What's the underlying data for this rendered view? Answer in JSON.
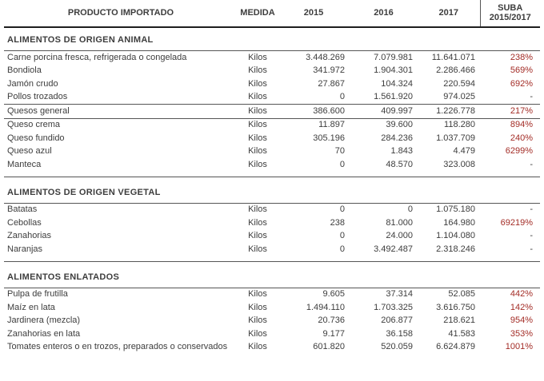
{
  "colors": {
    "highlight": "#a32c26",
    "text": "#3d3d3d",
    "rule_heavy": "#1e1e1e",
    "rule_light": "#555555"
  },
  "header": {
    "product": "PRODUCTO IMPORTADO",
    "medida": "MEDIDA",
    "y2015": "2015",
    "y2016": "2016",
    "y2017": "2017",
    "suba_line1": "SUBA",
    "suba_line2": "2015/2017"
  },
  "sections": [
    {
      "title": "ALIMENTOS DE ORIGEN ANIMAL",
      "groups": [
        {
          "rows": [
            {
              "product": "Carne porcina fresca, refrigerada o congelada",
              "unit": "Kilos",
              "y2015": "3.448.269",
              "y2016": "7.079.981",
              "y2017": "11.641.071",
              "suba": "238%",
              "highlight": true
            },
            {
              "product": "Bondiola",
              "unit": "Kilos",
              "y2015": "341.972",
              "y2016": "1.904.301",
              "y2017": "2.286.466",
              "suba": "569%",
              "highlight": true
            },
            {
              "product": "Jamón crudo",
              "unit": "Kilos",
              "y2015": "27.867",
              "y2016": "104.324",
              "y2017": "220.594",
              "suba": "692%",
              "highlight": true
            },
            {
              "product": "Pollos trozados",
              "unit": "Kilos",
              "y2015": "0",
              "y2016": "1.561.920",
              "y2017": "974.025",
              "suba": "-",
              "highlight": false
            }
          ]
        },
        {
          "rows": [
            {
              "product": "Quesos general",
              "unit": "Kilos",
              "y2015": "386.600",
              "y2016": "409.997",
              "y2017": "1.226.778",
              "suba": "217%",
              "highlight": true
            }
          ]
        },
        {
          "rows": [
            {
              "product": "Queso crema",
              "unit": "Kilos",
              "y2015": "11.897",
              "y2016": "39.600",
              "y2017": "118.280",
              "suba": "894%",
              "highlight": true
            },
            {
              "product": "Queso fundido",
              "unit": "Kilos",
              "y2015": "305.196",
              "y2016": "284.236",
              "y2017": "1.037.709",
              "suba": "240%",
              "highlight": true
            },
            {
              "product": "Queso azul",
              "unit": "Kilos",
              "y2015": "70",
              "y2016": "1.843",
              "y2017": "4.479",
              "suba": "6299%",
              "highlight": true
            },
            {
              "product": "Manteca",
              "unit": "Kilos",
              "y2015": "0",
              "y2016": "48.570",
              "y2017": "323.008",
              "suba": "-",
              "highlight": false
            }
          ]
        }
      ]
    },
    {
      "title": "ALIMENTOS DE ORIGEN VEGETAL",
      "groups": [
        {
          "rows": [
            {
              "product": "Batatas",
              "unit": "Kilos",
              "y2015": "0",
              "y2016": "0",
              "y2017": "1.075.180",
              "suba": "-",
              "highlight": false
            },
            {
              "product": "Cebollas",
              "unit": "Kilos",
              "y2015": "238",
              "y2016": "81.000",
              "y2017": "164.980",
              "suba": "69219%",
              "highlight": true
            },
            {
              "product": "Zanahorias",
              "unit": "Kilos",
              "y2015": "0",
              "y2016": "24.000",
              "y2017": "1.104.080",
              "suba": "-",
              "highlight": false
            },
            {
              "product": "Naranjas",
              "unit": "Kilos",
              "y2015": "0",
              "y2016": "3.492.487",
              "y2017": "2.318.246",
              "suba": "-",
              "highlight": false
            }
          ]
        }
      ]
    },
    {
      "title": "ALIMENTOS ENLATADOS",
      "groups": [
        {
          "rows": [
            {
              "product": "Pulpa de frutilla",
              "unit": "Kilos",
              "y2015": "9.605",
              "y2016": "37.314",
              "y2017": "52.085",
              "suba": "442%",
              "highlight": true
            },
            {
              "product": "Maíz en lata",
              "unit": "Kilos",
              "y2015": "1.494.110",
              "y2016": "1.703.325",
              "y2017": "3.616.750",
              "suba": "142%",
              "highlight": true
            },
            {
              "product": "Jardinera (mezcla)",
              "unit": "Kilos",
              "y2015": "20.736",
              "y2016": "206.877",
              "y2017": "218.621",
              "suba": "954%",
              "highlight": true
            },
            {
              "product": "Zanahorias en lata",
              "unit": "Kilos",
              "y2015": "9.177",
              "y2016": "36.158",
              "y2017": "41.583",
              "suba": "353%",
              "highlight": true
            },
            {
              "product": "Tomates enteros o en trozos, preparados o conservados",
              "unit": "Kilos",
              "y2015": "601.820",
              "y2016": "520.059",
              "y2017": "6.624.879",
              "suba": "1001%",
              "highlight": true
            }
          ]
        }
      ]
    }
  ]
}
